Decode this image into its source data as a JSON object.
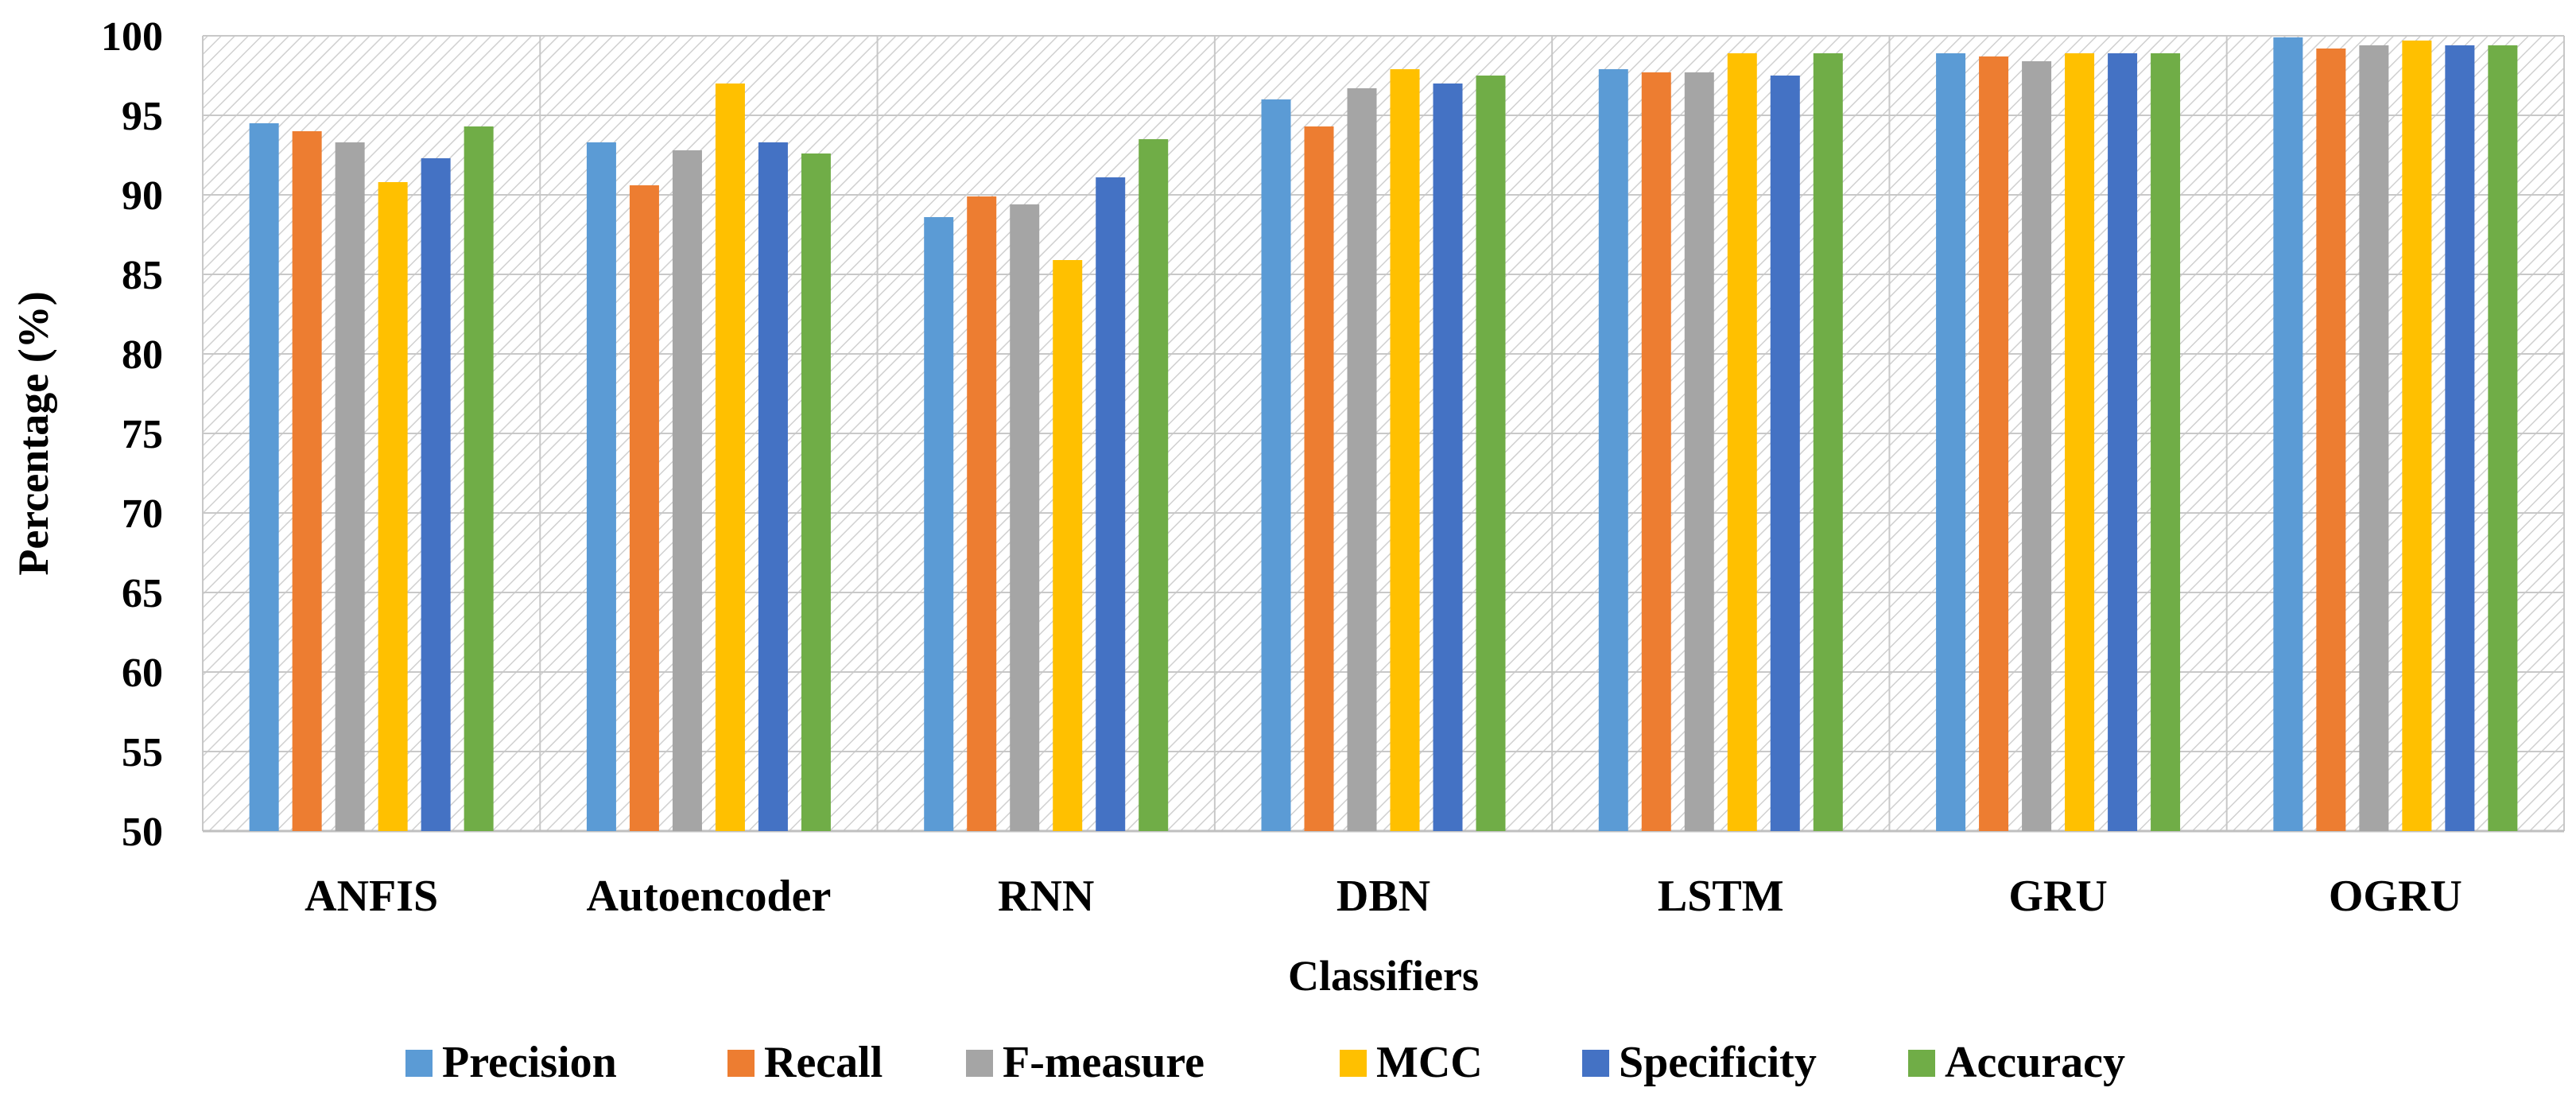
{
  "chart_data": {
    "type": "bar",
    "title": "",
    "xlabel": "Classifiers",
    "ylabel": "Percentage (%)",
    "ylim": [
      50,
      100
    ],
    "yticks": [
      50,
      55,
      60,
      65,
      70,
      75,
      80,
      85,
      90,
      95,
      100
    ],
    "categories": [
      "ANFIS",
      "Autoencoder",
      "RNN",
      "DBN",
      "LSTM",
      "GRU",
      "OGRU"
    ],
    "series": [
      {
        "name": "Precision",
        "color": "#5B9BD5",
        "values": [
          94.5,
          93.3,
          88.6,
          96.0,
          97.9,
          98.9,
          99.9
        ]
      },
      {
        "name": "Recall",
        "color": "#ED7D31",
        "values": [
          94.0,
          90.6,
          89.9,
          94.3,
          97.7,
          98.7,
          99.2
        ]
      },
      {
        "name": "F-measure",
        "color": "#A5A5A5",
        "values": [
          93.3,
          92.8,
          89.4,
          96.7,
          97.7,
          98.4,
          99.4
        ]
      },
      {
        "name": "MCC",
        "color": "#FFC000",
        "values": [
          90.8,
          97.0,
          85.9,
          97.9,
          98.9,
          98.9,
          99.7
        ]
      },
      {
        "name": "Specificity",
        "color": "#4472C4",
        "values": [
          92.3,
          93.3,
          91.1,
          97.0,
          97.5,
          98.9,
          99.4
        ]
      },
      {
        "name": "Accuracy",
        "color": "#70AD47",
        "values": [
          94.3,
          92.6,
          93.5,
          97.5,
          98.9,
          98.9,
          99.4
        ]
      }
    ],
    "grid": true,
    "legend_position": "bottom"
  }
}
